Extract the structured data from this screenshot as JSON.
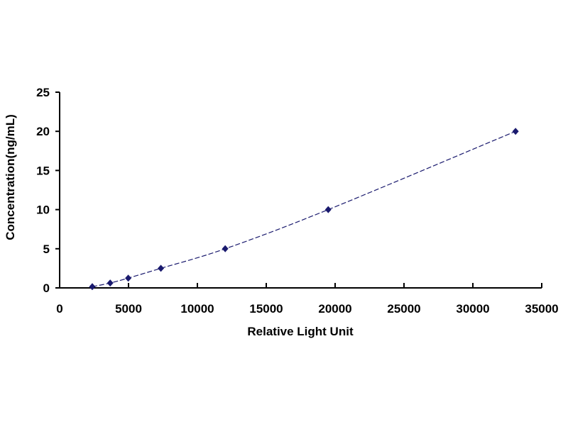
{
  "chart_data": {
    "type": "line",
    "title": "",
    "xlabel": "Relative Light Unit",
    "ylabel": "Concentration(ng/mL)",
    "xlim": [
      0,
      35000
    ],
    "ylim": [
      0,
      25
    ],
    "xticks": [
      "0",
      "5000",
      "10000",
      "15000",
      "20000",
      "25000",
      "30000",
      "35000"
    ],
    "yticks": [
      "0",
      "5",
      "10",
      "15",
      "20",
      "25"
    ],
    "grid": false,
    "series": [
      {
        "x": [
          2370,
          3670,
          4980,
          7350,
          12020,
          19500,
          33100
        ],
        "y": [
          0.156,
          0.625,
          1.25,
          2.5,
          5,
          10,
          20
        ],
        "color": "#1a1a6e",
        "marker": "diamond",
        "smooth": true
      }
    ]
  }
}
